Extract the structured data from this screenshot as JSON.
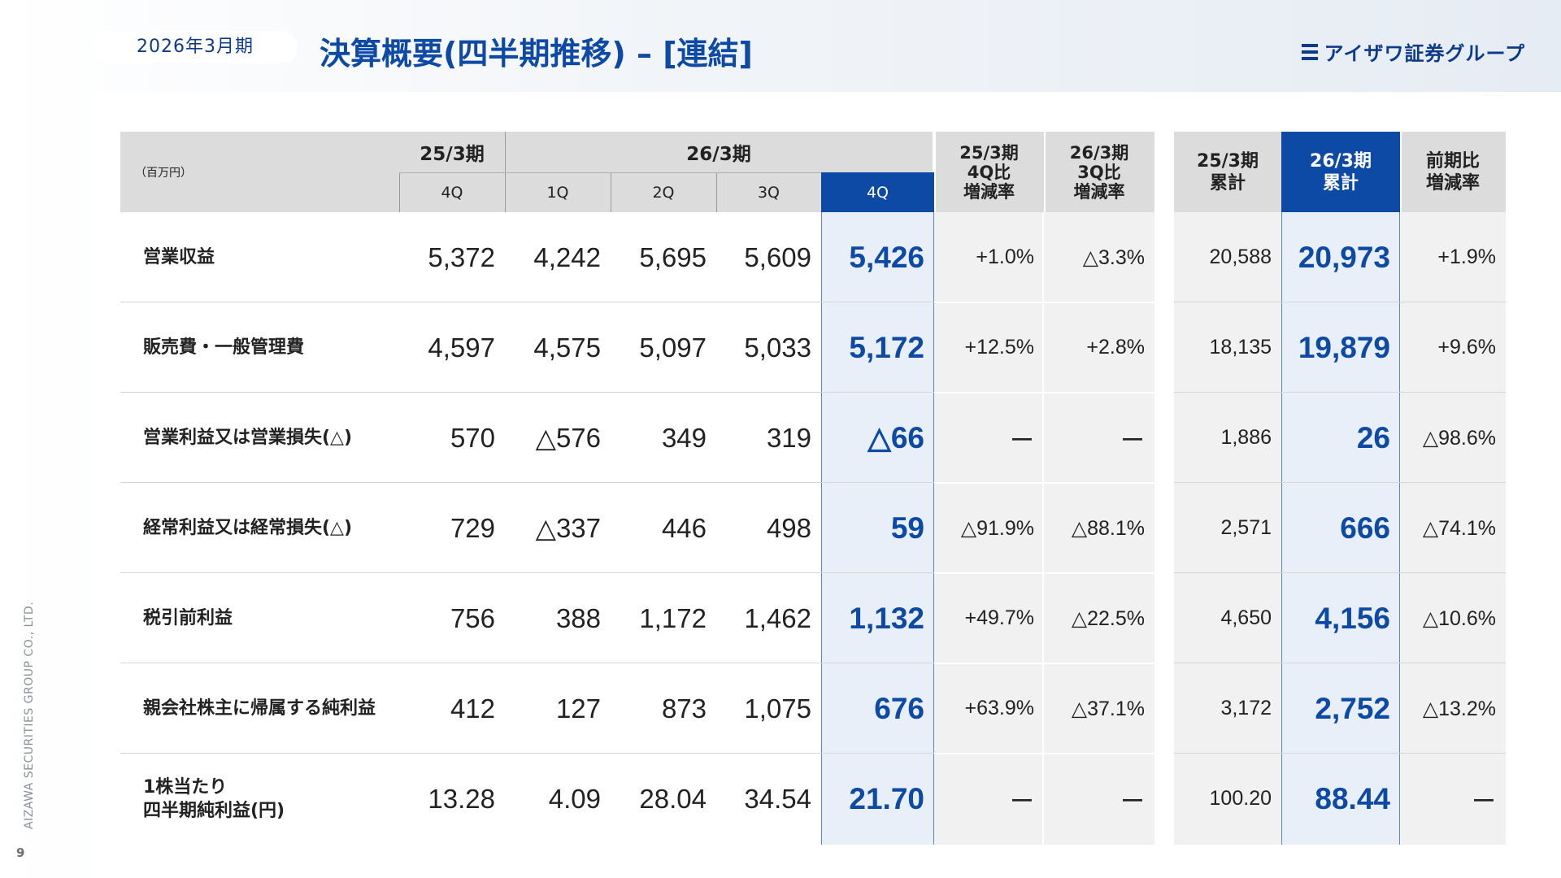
{
  "header": {
    "period": "2026年3月期",
    "title": "決算概要(四半期推移) – [連結]",
    "logo_text": "アイザワ証券グループ"
  },
  "footer": {
    "company": "AIZAWA SECURITIES GROUP CO., LTD.",
    "page_number": "9"
  },
  "table": {
    "unit_label": "（百万円）",
    "group_25": "25/3期",
    "group_26": "26/3期",
    "col_25_4q": "4Q",
    "col_1q": "1Q",
    "col_2q": "2Q",
    "col_3q": "3Q",
    "col_4q": "4Q",
    "col_yoy_l1": "25/3期",
    "col_yoy_l2": "4Q比",
    "col_yoy_l3": "増減率",
    "col_qoq_l1": "26/3期",
    "col_qoq_l2": "3Q比",
    "col_qoq_l3": "増減率",
    "col_cum25_l1": "25/3期",
    "col_cum25_l2": "累計",
    "col_cum26_l1": "26/3期",
    "col_cum26_l2": "累計",
    "col_ratio_l1": "前期比",
    "col_ratio_l2": "増減率",
    "rows": [
      {
        "label_1": "営業収益",
        "label_2": "",
        "q25_4": "5,372",
        "q1": "4,242",
        "q2": "5,695",
        "q3": "5,609",
        "q4": "5,426",
        "yoy": "+1.0%",
        "qoq": "△3.3%",
        "cum25": "20,588",
        "cum26": "20,973",
        "ratio": "+1.9%"
      },
      {
        "label_1": "販売費・一般管理費",
        "label_2": "",
        "q25_4": "4,597",
        "q1": "4,575",
        "q2": "5,097",
        "q3": "5,033",
        "q4": "5,172",
        "yoy": "+12.5%",
        "qoq": "+2.8%",
        "cum25": "18,135",
        "cum26": "19,879",
        "ratio": "+9.6%"
      },
      {
        "label_1": "営業利益又は営業損失(△)",
        "label_2": "",
        "q25_4": "570",
        "q1": "△576",
        "q2": "349",
        "q3": "319",
        "q4": "△66",
        "yoy": "ー",
        "qoq": "ー",
        "cum25": "1,886",
        "cum26": "26",
        "ratio": "△98.6%"
      },
      {
        "label_1": "経常利益又は経常損失(△)",
        "label_2": "",
        "q25_4": "729",
        "q1": "△337",
        "q2": "446",
        "q3": "498",
        "q4": "59",
        "yoy": "△91.9%",
        "qoq": "△88.1%",
        "cum25": "2,571",
        "cum26": "666",
        "ratio": "△74.1%"
      },
      {
        "label_1": "税引前利益",
        "label_2": "",
        "q25_4": "756",
        "q1": "388",
        "q2": "1,172",
        "q3": "1,462",
        "q4": "1,132",
        "yoy": "+49.7%",
        "qoq": "△22.5%",
        "cum25": "4,650",
        "cum26": "4,156",
        "ratio": "△10.6%"
      },
      {
        "label_1": "親会社株主に帰属する純利益",
        "label_2": "",
        "q25_4": "412",
        "q1": "127",
        "q2": "873",
        "q3": "1,075",
        "q4": "676",
        "yoy": "+63.9%",
        "qoq": "△37.1%",
        "cum25": "3,172",
        "cum26": "2,752",
        "ratio": "△13.2%"
      },
      {
        "label_1": "1株当たり",
        "label_2": "四半期純利益(円)",
        "q25_4": "13.28",
        "q1": "4.09",
        "q2": "28.04",
        "q3": "34.54",
        "q4": "21.70",
        "yoy": "ー",
        "qoq": "ー",
        "cum25": "100.20",
        "cum26": "88.44",
        "ratio": "ー"
      }
    ]
  }
}
